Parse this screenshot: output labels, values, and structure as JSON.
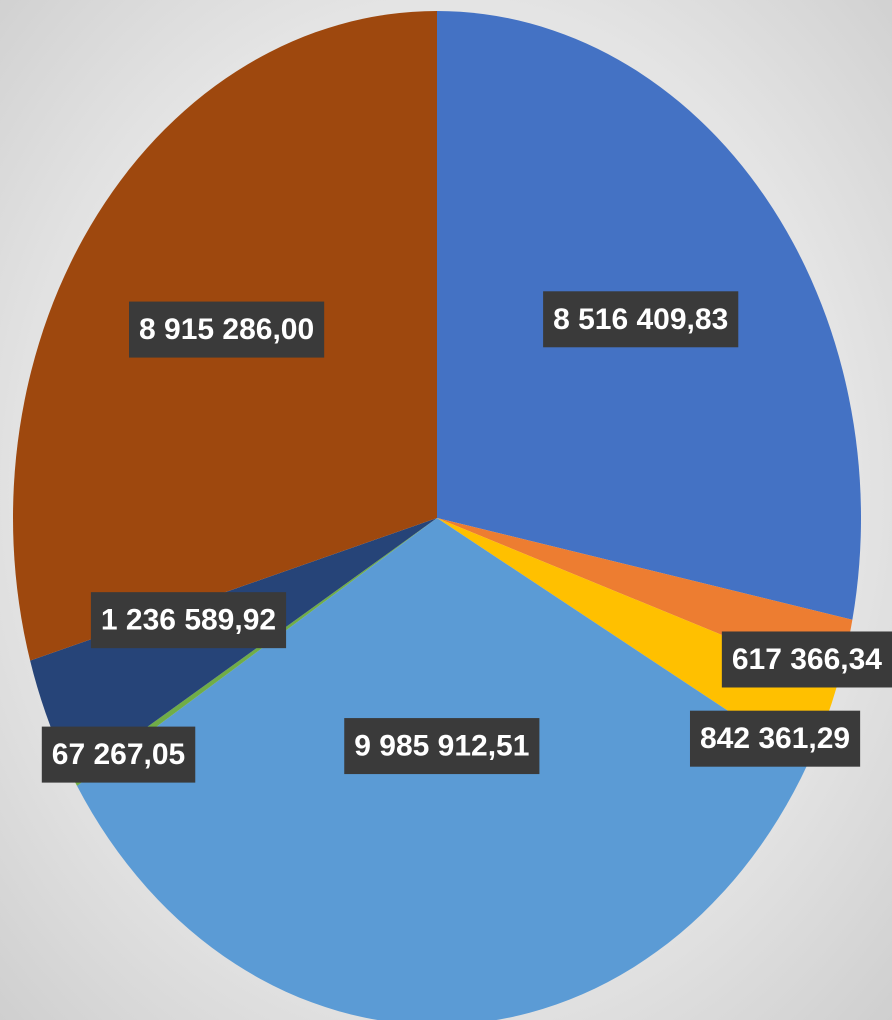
{
  "chart_data": {
    "type": "pie",
    "title": "",
    "slices": [
      {
        "value": 8516409.83,
        "label": "8 516 409,83",
        "color": "#4472C4"
      },
      {
        "value": 617366.34,
        "label": "617 366,34",
        "color": "#ED7D31"
      },
      {
        "value": 842361.29,
        "label": "842 361,29",
        "color": "#FFC000"
      },
      {
        "value": 9985912.51,
        "label": "9 985 912,51",
        "color": "#5B9BD5"
      },
      {
        "value": 67267.05,
        "label": "67 267,05",
        "color": "#70AD47"
      },
      {
        "value": 1236589.92,
        "label": "1 236 589,92",
        "color": "#264478"
      },
      {
        "value": 8915286.0,
        "label": "8 915 286,00",
        "color": "#9E480E"
      }
    ],
    "start_angle": "12 o'clock",
    "direction": "clockwise",
    "data_labels": "value, dark box, white text",
    "legend": "none"
  }
}
